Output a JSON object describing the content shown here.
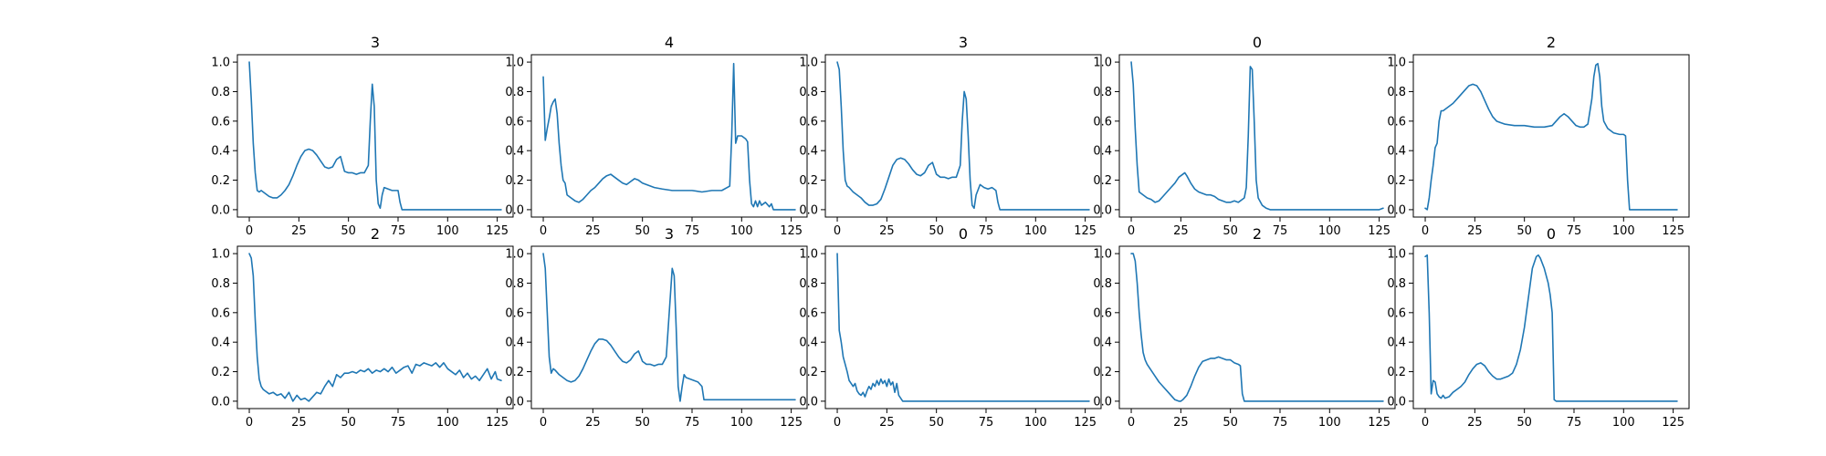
{
  "figure": {
    "background": "#ffffff",
    "line_color": "#1f77b4"
  },
  "chart_data": [
    {
      "type": "line",
      "title": "3",
      "xlim": [
        -6,
        133
      ],
      "ylim": [
        -0.05,
        1.05
      ],
      "xticks": [
        0,
        25,
        50,
        75,
        100,
        125
      ],
      "yticks": [
        0.0,
        0.2,
        0.4,
        0.6,
        0.8,
        1.0
      ],
      "x": [
        0,
        1,
        2,
        3,
        4,
        5,
        6,
        8,
        10,
        12,
        14,
        16,
        18,
        20,
        22,
        24,
        26,
        28,
        30,
        32,
        34,
        36,
        38,
        40,
        42,
        44,
        46,
        48,
        50,
        52,
        54,
        56,
        58,
        60,
        61,
        62,
        63,
        64,
        65,
        66,
        67,
        68,
        70,
        72,
        74,
        75,
        76,
        77,
        80,
        90,
        100,
        110,
        120,
        125,
        127
      ],
      "y": [
        1.0,
        0.75,
        0.45,
        0.25,
        0.13,
        0.12,
        0.13,
        0.11,
        0.09,
        0.08,
        0.08,
        0.1,
        0.13,
        0.17,
        0.23,
        0.3,
        0.36,
        0.4,
        0.41,
        0.4,
        0.37,
        0.33,
        0.29,
        0.28,
        0.29,
        0.34,
        0.36,
        0.26,
        0.25,
        0.25,
        0.24,
        0.25,
        0.25,
        0.3,
        0.6,
        0.85,
        0.7,
        0.2,
        0.04,
        0.01,
        0.1,
        0.15,
        0.14,
        0.13,
        0.13,
        0.13,
        0.05,
        0.0,
        0.0,
        0.0,
        0.0,
        0.0,
        0.0,
        0.0,
        0.0
      ]
    },
    {
      "type": "line",
      "title": "4",
      "xlim": [
        -6,
        133
      ],
      "ylim": [
        -0.05,
        1.05
      ],
      "xticks": [
        0,
        25,
        50,
        75,
        100,
        125
      ],
      "yticks": [
        0.0,
        0.2,
        0.4,
        0.6,
        0.8,
        1.0
      ],
      "x": [
        0,
        1,
        2,
        3,
        4,
        5,
        6,
        7,
        8,
        9,
        10,
        11,
        12,
        14,
        16,
        18,
        20,
        22,
        24,
        26,
        28,
        30,
        32,
        34,
        36,
        38,
        40,
        42,
        44,
        46,
        48,
        50,
        52,
        54,
        56,
        60,
        65,
        70,
        75,
        80,
        85,
        90,
        94,
        95,
        96,
        97,
        98,
        100,
        102,
        103,
        104,
        105,
        106,
        107,
        108,
        109,
        110,
        112,
        114,
        115,
        116,
        118,
        120,
        125,
        127
      ],
      "y": [
        0.9,
        0.47,
        0.55,
        0.62,
        0.7,
        0.73,
        0.75,
        0.65,
        0.45,
        0.3,
        0.2,
        0.18,
        0.1,
        0.08,
        0.06,
        0.05,
        0.07,
        0.1,
        0.13,
        0.15,
        0.18,
        0.21,
        0.23,
        0.24,
        0.22,
        0.2,
        0.18,
        0.17,
        0.19,
        0.21,
        0.2,
        0.18,
        0.17,
        0.16,
        0.15,
        0.14,
        0.13,
        0.13,
        0.13,
        0.12,
        0.13,
        0.13,
        0.16,
        0.5,
        0.99,
        0.45,
        0.5,
        0.5,
        0.48,
        0.46,
        0.2,
        0.04,
        0.02,
        0.06,
        0.02,
        0.06,
        0.03,
        0.05,
        0.02,
        0.04,
        0.0,
        0.0,
        0.0,
        0.0,
        0.0
      ]
    },
    {
      "type": "line",
      "title": "3",
      "xlim": [
        -6,
        133
      ],
      "ylim": [
        -0.05,
        1.05
      ],
      "xticks": [
        0,
        25,
        50,
        75,
        100,
        125
      ],
      "yticks": [
        0.0,
        0.2,
        0.4,
        0.6,
        0.8,
        1.0
      ],
      "x": [
        0,
        1,
        2,
        3,
        4,
        5,
        6,
        8,
        10,
        12,
        14,
        16,
        18,
        20,
        22,
        24,
        26,
        28,
        30,
        32,
        34,
        36,
        38,
        40,
        42,
        44,
        46,
        48,
        50,
        52,
        54,
        56,
        58,
        60,
        62,
        63,
        64,
        65,
        66,
        67,
        68,
        69,
        70,
        72,
        74,
        76,
        78,
        80,
        81,
        82,
        90,
        100,
        110,
        120,
        125,
        127
      ],
      "y": [
        1.0,
        0.95,
        0.7,
        0.4,
        0.2,
        0.16,
        0.15,
        0.12,
        0.1,
        0.08,
        0.05,
        0.03,
        0.03,
        0.04,
        0.07,
        0.14,
        0.22,
        0.3,
        0.34,
        0.35,
        0.34,
        0.31,
        0.27,
        0.24,
        0.23,
        0.25,
        0.3,
        0.32,
        0.24,
        0.22,
        0.22,
        0.21,
        0.22,
        0.22,
        0.3,
        0.6,
        0.8,
        0.75,
        0.5,
        0.2,
        0.03,
        0.01,
        0.1,
        0.17,
        0.15,
        0.14,
        0.15,
        0.13,
        0.05,
        0.0,
        0.0,
        0.0,
        0.0,
        0.0,
        0.0,
        0.0
      ]
    },
    {
      "type": "line",
      "title": "0",
      "xlim": [
        -6,
        133
      ],
      "ylim": [
        -0.05,
        1.05
      ],
      "xticks": [
        0,
        25,
        50,
        75,
        100,
        125
      ],
      "yticks": [
        0.0,
        0.2,
        0.4,
        0.6,
        0.8,
        1.0
      ],
      "x": [
        0,
        1,
        2,
        3,
        4,
        6,
        8,
        10,
        12,
        14,
        16,
        18,
        20,
        22,
        24,
        26,
        27,
        28,
        30,
        32,
        34,
        36,
        38,
        40,
        42,
        44,
        46,
        48,
        50,
        52,
        54,
        56,
        57,
        58,
        59,
        60,
        61,
        62,
        63,
        64,
        66,
        68,
        70,
        75,
        80,
        90,
        100,
        110,
        120,
        125,
        127
      ],
      "y": [
        1.0,
        0.85,
        0.55,
        0.3,
        0.12,
        0.1,
        0.08,
        0.07,
        0.05,
        0.06,
        0.09,
        0.12,
        0.15,
        0.18,
        0.22,
        0.24,
        0.25,
        0.23,
        0.18,
        0.14,
        0.12,
        0.11,
        0.1,
        0.1,
        0.09,
        0.07,
        0.06,
        0.05,
        0.05,
        0.06,
        0.05,
        0.07,
        0.08,
        0.15,
        0.5,
        0.97,
        0.95,
        0.6,
        0.2,
        0.08,
        0.03,
        0.01,
        0.0,
        0.0,
        0.0,
        0.0,
        0.0,
        0.0,
        0.0,
        0.0,
        0.01
      ]
    },
    {
      "type": "line",
      "title": "2",
      "xlim": [
        -6,
        133
      ],
      "ylim": [
        -0.05,
        1.05
      ],
      "xticks": [
        0,
        25,
        50,
        75,
        100,
        125
      ],
      "yticks": [
        0.0,
        0.2,
        0.4,
        0.6,
        0.8,
        1.0
      ],
      "x": [
        0,
        1,
        2,
        3,
        4,
        5,
        6,
        7,
        8,
        9,
        10,
        12,
        14,
        16,
        18,
        20,
        22,
        24,
        26,
        28,
        30,
        32,
        34,
        36,
        38,
        40,
        45,
        50,
        55,
        60,
        64,
        66,
        68,
        70,
        72,
        74,
        76,
        78,
        80,
        82,
        84,
        85,
        86,
        87,
        88,
        89,
        90,
        92,
        95,
        98,
        100,
        101,
        102,
        103,
        110,
        120,
        125,
        127
      ],
      "y": [
        0.01,
        0.0,
        0.08,
        0.2,
        0.3,
        0.42,
        0.45,
        0.6,
        0.67,
        0.67,
        0.68,
        0.7,
        0.72,
        0.75,
        0.78,
        0.81,
        0.84,
        0.85,
        0.84,
        0.8,
        0.74,
        0.68,
        0.63,
        0.6,
        0.59,
        0.58,
        0.57,
        0.57,
        0.56,
        0.56,
        0.57,
        0.6,
        0.63,
        0.65,
        0.63,
        0.6,
        0.57,
        0.56,
        0.56,
        0.58,
        0.75,
        0.9,
        0.98,
        0.99,
        0.9,
        0.7,
        0.6,
        0.55,
        0.52,
        0.51,
        0.51,
        0.5,
        0.2,
        0.0,
        0.0,
        0.0,
        0.0,
        0.0
      ]
    },
    {
      "type": "line",
      "title": "2",
      "xlim": [
        -6,
        133
      ],
      "ylim": [
        -0.05,
        1.05
      ],
      "xticks": [
        0,
        25,
        50,
        75,
        100,
        125
      ],
      "yticks": [
        0.0,
        0.2,
        0.4,
        0.6,
        0.8,
        1.0
      ],
      "x": [
        0,
        1,
        2,
        3,
        4,
        5,
        6,
        7,
        8,
        10,
        12,
        14,
        16,
        18,
        20,
        22,
        24,
        26,
        28,
        30,
        32,
        34,
        36,
        38,
        40,
        42,
        44,
        46,
        48,
        50,
        52,
        54,
        56,
        58,
        60,
        62,
        64,
        66,
        68,
        70,
        72,
        74,
        76,
        78,
        80,
        82,
        84,
        86,
        88,
        90,
        92,
        94,
        96,
        98,
        100,
        102,
        104,
        106,
        108,
        110,
        112,
        114,
        116,
        118,
        120,
        122,
        124,
        125,
        127
      ],
      "y": [
        1.0,
        0.97,
        0.85,
        0.55,
        0.3,
        0.15,
        0.1,
        0.08,
        0.07,
        0.05,
        0.06,
        0.04,
        0.05,
        0.02,
        0.06,
        0.0,
        0.04,
        0.01,
        0.02,
        0.0,
        0.03,
        0.06,
        0.05,
        0.1,
        0.14,
        0.1,
        0.18,
        0.16,
        0.19,
        0.19,
        0.2,
        0.19,
        0.21,
        0.2,
        0.22,
        0.19,
        0.21,
        0.2,
        0.22,
        0.2,
        0.23,
        0.19,
        0.21,
        0.23,
        0.24,
        0.19,
        0.25,
        0.24,
        0.26,
        0.25,
        0.24,
        0.26,
        0.23,
        0.26,
        0.22,
        0.2,
        0.18,
        0.21,
        0.16,
        0.19,
        0.15,
        0.17,
        0.14,
        0.18,
        0.22,
        0.15,
        0.2,
        0.15,
        0.14
      ]
    },
    {
      "type": "line",
      "title": "3",
      "xlim": [
        -6,
        133
      ],
      "ylim": [
        -0.05,
        1.05
      ],
      "xticks": [
        0,
        25,
        50,
        75,
        100,
        125
      ],
      "yticks": [
        0.0,
        0.2,
        0.4,
        0.6,
        0.8,
        1.0
      ],
      "x": [
        0,
        1,
        2,
        3,
        4,
        5,
        6,
        8,
        10,
        12,
        14,
        16,
        18,
        20,
        22,
        24,
        26,
        28,
        30,
        32,
        34,
        36,
        38,
        40,
        42,
        44,
        46,
        48,
        50,
        52,
        54,
        56,
        58,
        60,
        62,
        64,
        65,
        66,
        67,
        68,
        69,
        70,
        71,
        72,
        74,
        76,
        78,
        80,
        81,
        90,
        100,
        110,
        120,
        125,
        127
      ],
      "y": [
        1.0,
        0.9,
        0.6,
        0.3,
        0.19,
        0.22,
        0.21,
        0.18,
        0.16,
        0.14,
        0.13,
        0.14,
        0.17,
        0.22,
        0.28,
        0.34,
        0.39,
        0.42,
        0.42,
        0.41,
        0.38,
        0.34,
        0.3,
        0.27,
        0.26,
        0.28,
        0.32,
        0.34,
        0.27,
        0.25,
        0.25,
        0.24,
        0.25,
        0.25,
        0.3,
        0.7,
        0.9,
        0.85,
        0.5,
        0.1,
        0.0,
        0.1,
        0.18,
        0.16,
        0.15,
        0.14,
        0.13,
        0.1,
        0.01,
        0.01,
        0.01,
        0.01,
        0.01,
        0.01,
        0.01
      ]
    },
    {
      "type": "line",
      "title": "0",
      "xlim": [
        -6,
        133
      ],
      "ylim": [
        -0.05,
        1.05
      ],
      "xticks": [
        0,
        25,
        50,
        75,
        100,
        125
      ],
      "yticks": [
        0.0,
        0.2,
        0.4,
        0.6,
        0.8,
        1.0
      ],
      "x": [
        0,
        1,
        2,
        3,
        4,
        5,
        6,
        7,
        8,
        9,
        10,
        11,
        12,
        13,
        14,
        15,
        16,
        17,
        18,
        19,
        20,
        21,
        22,
        23,
        24,
        25,
        26,
        27,
        28,
        29,
        30,
        31,
        32,
        33,
        34,
        40,
        50,
        60,
        75,
        100,
        125,
        127
      ],
      "y": [
        1.0,
        0.48,
        0.4,
        0.3,
        0.25,
        0.2,
        0.14,
        0.12,
        0.1,
        0.12,
        0.07,
        0.05,
        0.04,
        0.06,
        0.03,
        0.07,
        0.1,
        0.08,
        0.12,
        0.1,
        0.14,
        0.11,
        0.15,
        0.12,
        0.14,
        0.1,
        0.15,
        0.11,
        0.13,
        0.06,
        0.12,
        0.04,
        0.02,
        0.0,
        0.0,
        0.0,
        0.0,
        0.0,
        0.0,
        0.0,
        0.0,
        0.0
      ]
    },
    {
      "type": "line",
      "title": "2",
      "xlim": [
        -6,
        133
      ],
      "ylim": [
        -0.05,
        1.05
      ],
      "xticks": [
        0,
        25,
        50,
        75,
        100,
        125
      ],
      "yticks": [
        0.0,
        0.2,
        0.4,
        0.6,
        0.8,
        1.0
      ],
      "x": [
        0,
        1,
        2,
        3,
        4,
        5,
        6,
        7,
        8,
        10,
        12,
        14,
        16,
        18,
        20,
        22,
        24,
        25,
        26,
        28,
        30,
        32,
        34,
        36,
        38,
        40,
        42,
        44,
        46,
        48,
        50,
        52,
        54,
        55,
        56,
        57,
        60,
        75,
        100,
        125,
        127
      ],
      "y": [
        1.0,
        1.0,
        0.95,
        0.8,
        0.6,
        0.45,
        0.33,
        0.28,
        0.25,
        0.21,
        0.17,
        0.13,
        0.1,
        0.07,
        0.04,
        0.01,
        0.0,
        0.0,
        0.01,
        0.04,
        0.1,
        0.17,
        0.23,
        0.27,
        0.28,
        0.29,
        0.29,
        0.3,
        0.29,
        0.28,
        0.28,
        0.26,
        0.25,
        0.24,
        0.05,
        0.0,
        0.0,
        0.0,
        0.0,
        0.0,
        0.0
      ]
    },
    {
      "type": "line",
      "title": "0",
      "xlim": [
        -6,
        133
      ],
      "ylim": [
        -0.05,
        1.05
      ],
      "xticks": [
        0,
        25,
        50,
        75,
        100,
        125
      ],
      "yticks": [
        0.0,
        0.2,
        0.4,
        0.6,
        0.8,
        1.0
      ],
      "x": [
        0,
        1,
        2,
        3,
        4,
        5,
        6,
        7,
        8,
        9,
        10,
        12,
        14,
        16,
        18,
        20,
        22,
        24,
        26,
        28,
        30,
        32,
        34,
        36,
        38,
        40,
        42,
        44,
        46,
        48,
        50,
        52,
        54,
        56,
        57,
        58,
        60,
        62,
        63,
        64,
        65,
        66,
        70,
        75,
        100,
        125,
        127
      ],
      "y": [
        0.98,
        0.99,
        0.6,
        0.05,
        0.14,
        0.13,
        0.05,
        0.03,
        0.02,
        0.04,
        0.02,
        0.03,
        0.06,
        0.08,
        0.1,
        0.13,
        0.18,
        0.22,
        0.25,
        0.26,
        0.24,
        0.2,
        0.17,
        0.15,
        0.15,
        0.16,
        0.17,
        0.19,
        0.25,
        0.35,
        0.5,
        0.7,
        0.9,
        0.98,
        0.99,
        0.97,
        0.9,
        0.8,
        0.72,
        0.6,
        0.01,
        0.0,
        0.0,
        0.0,
        0.0,
        0.0,
        0.0
      ]
    }
  ]
}
